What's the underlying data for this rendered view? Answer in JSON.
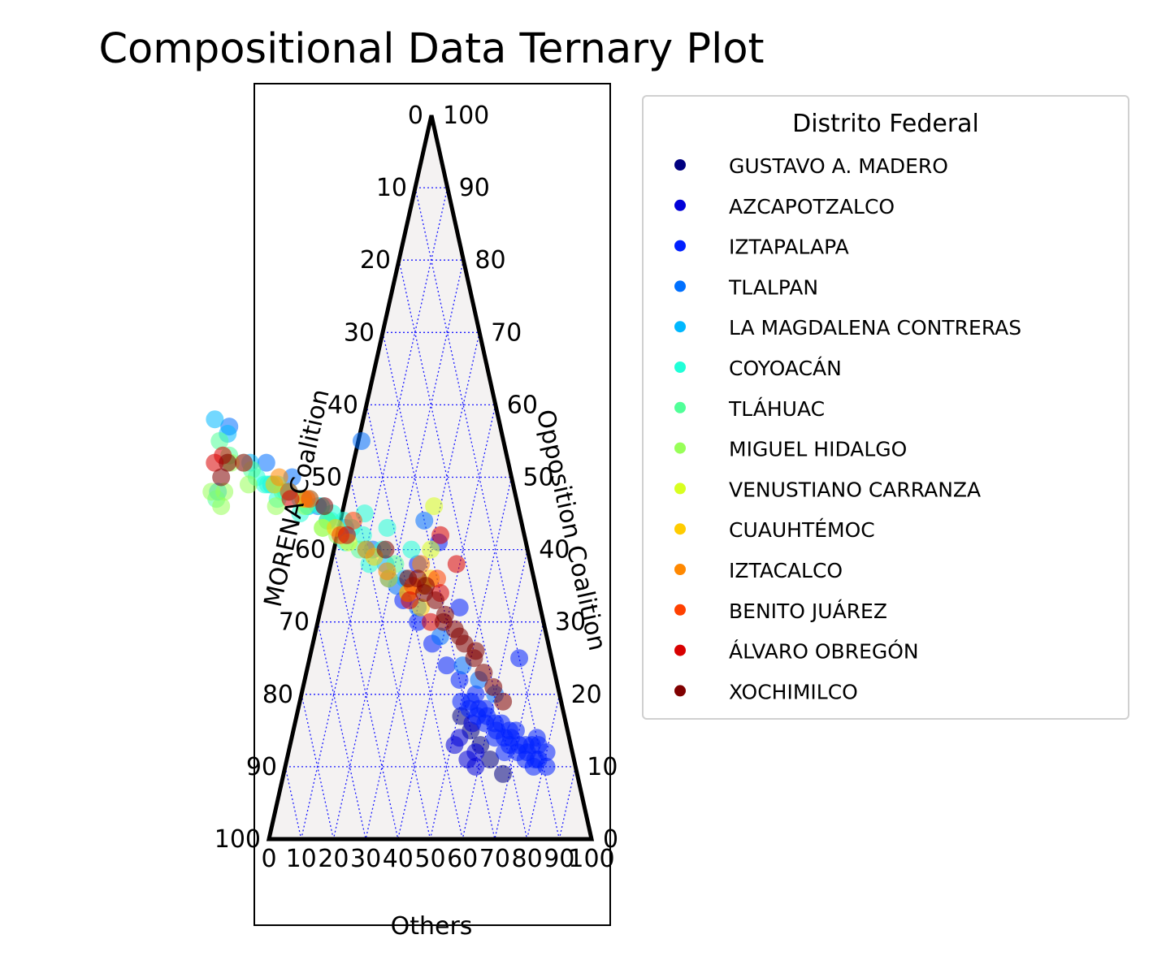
{
  "chart_data": {
    "type": "scatter",
    "subtype": "ternary",
    "title": "Compositional Data Ternary Plot",
    "axes": {
      "top": {
        "label": "",
        "range": [
          0,
          100
        ]
      },
      "left": {
        "label": "MORENA Coalition",
        "range": [
          0,
          100
        ]
      },
      "right": {
        "label": "Opposition Coalition",
        "range": [
          0,
          100
        ]
      },
      "bottom": {
        "label": "Others",
        "range": [
          0,
          100
        ]
      }
    },
    "left_ticks": [
      "0",
      "10",
      "20",
      "30",
      "40",
      "50",
      "60",
      "70",
      "80",
      "90",
      "100"
    ],
    "right_ticks": [
      "0",
      "10",
      "20",
      "30",
      "40",
      "50",
      "60",
      "70",
      "80",
      "90",
      "100"
    ],
    "bottom_ticks": [
      "0",
      "10",
      "20",
      "30",
      "40",
      "50",
      "60",
      "70",
      "80",
      "90",
      "100"
    ],
    "grid": true,
    "legend": {
      "title": "Distrito Federal",
      "placement": "outside-right"
    },
    "series": [
      {
        "name": "GUSTAVO A. MADERO",
        "color": "#000080",
        "points": [
          [
            23,
            9
          ],
          [
            26,
            11
          ],
          [
            28,
            13
          ],
          [
            30,
            15
          ],
          [
            32,
            17
          ]
        ]
      },
      {
        "name": "AZCAPOTZALCO",
        "color": "#0000d8",
        "points": [
          [
            30,
            12
          ],
          [
            31,
            10
          ],
          [
            34,
            14
          ],
          [
            36,
            13
          ],
          [
            29,
            16
          ],
          [
            33,
            11
          ]
        ]
      },
      {
        "name": "IZTAPALAPA",
        "color": "#0020ff",
        "points": [
          [
            8,
            12
          ],
          [
            10,
            14
          ],
          [
            12,
            13
          ],
          [
            14,
            12
          ],
          [
            16,
            15
          ],
          [
            18,
            14
          ],
          [
            20,
            16
          ],
          [
            22,
            15
          ],
          [
            24,
            17
          ],
          [
            26,
            18
          ],
          [
            28,
            19
          ],
          [
            9,
            10
          ],
          [
            11,
            11
          ],
          [
            13,
            10
          ],
          [
            15,
            11
          ],
          [
            17,
            12
          ],
          [
            19,
            13
          ],
          [
            21,
            12
          ],
          [
            23,
            14
          ],
          [
            25,
            16
          ],
          [
            27,
            17
          ],
          [
            29,
            18
          ],
          [
            31,
            19
          ],
          [
            10,
            13
          ],
          [
            12,
            11
          ],
          [
            14,
            13
          ],
          [
            16,
            13
          ],
          [
            18,
            15
          ],
          [
            20,
            14
          ],
          [
            22,
            16
          ],
          [
            24,
            18
          ],
          [
            26,
            20
          ],
          [
            30,
            22
          ],
          [
            33,
            24
          ],
          [
            36,
            27
          ],
          [
            39,
            30
          ],
          [
            42,
            33
          ],
          [
            10,
            25
          ],
          [
            25,
            32
          ],
          [
            35,
            38
          ],
          [
            45,
            36
          ],
          [
            27,
            41
          ]
        ]
      },
      {
        "name": "TLALPAN",
        "color": "#0070ff",
        "points": [
          [
            20,
            20
          ],
          [
            24,
            22
          ],
          [
            28,
            24
          ],
          [
            33,
            28
          ],
          [
            38,
            32
          ],
          [
            43,
            35
          ],
          [
            48,
            40
          ],
          [
            55,
            43
          ],
          [
            62,
            46
          ],
          [
            68,
            50
          ],
          [
            75,
            52
          ],
          [
            84,
            57
          ],
          [
            44,
            55
          ],
          [
            66,
            47
          ],
          [
            30,
            44
          ]
        ]
      },
      {
        "name": "LA MAGDALENA CONTRERAS",
        "color": "#00b8ff",
        "points": [
          [
            40,
            36
          ],
          [
            45,
            38
          ],
          [
            50,
            40
          ],
          [
            55,
            42
          ],
          [
            60,
            44
          ],
          [
            65,
            46
          ],
          [
            70,
            48
          ],
          [
            75,
            49
          ],
          [
            80,
            52
          ],
          [
            85,
            56
          ],
          [
            88,
            58
          ],
          [
            92,
            48
          ]
        ]
      },
      {
        "name": "COYOACÁN",
        "color": "#20ffd8",
        "points": [
          [
            45,
            40
          ],
          [
            50,
            42
          ],
          [
            55,
            44
          ],
          [
            58,
            45
          ],
          [
            61,
            46
          ],
          [
            64,
            47
          ],
          [
            67,
            47
          ],
          [
            70,
            48
          ],
          [
            73,
            49
          ],
          [
            76,
            49
          ],
          [
            79,
            50
          ],
          [
            82,
            52
          ],
          [
            50,
            38
          ],
          [
            56,
            41
          ],
          [
            62,
            43
          ],
          [
            68,
            45
          ],
          [
            74,
            47
          ],
          [
            53,
            43
          ],
          [
            59,
            44
          ],
          [
            65,
            46
          ],
          [
            71,
            48
          ],
          [
            77,
            49
          ],
          [
            36,
            40
          ],
          [
            42,
            43
          ],
          [
            48,
            45
          ]
        ]
      },
      {
        "name": "TLÁHUAC",
        "color": "#50ff98",
        "points": [
          [
            42,
            38
          ],
          [
            52,
            40
          ],
          [
            60,
            44
          ],
          [
            72,
            48
          ],
          [
            80,
            51
          ],
          [
            88,
            55
          ],
          [
            93,
            47
          ],
          [
            86,
            53
          ]
        ]
      },
      {
        "name": "MIGUEL HIDALGO",
        "color": "#98ff58",
        "points": [
          [
            75,
            46
          ],
          [
            82,
            49
          ],
          [
            86,
            52
          ],
          [
            90,
            48
          ],
          [
            92,
            46
          ],
          [
            94,
            48
          ],
          [
            58,
            42
          ],
          [
            66,
            46
          ]
        ]
      },
      {
        "name": "VENUSTIANO CARRANZA",
        "color": "#d8ff20",
        "points": [
          [
            40,
            34
          ],
          [
            45,
            36
          ],
          [
            30,
            40
          ],
          [
            26,
            46
          ],
          [
            55,
            41
          ],
          [
            62,
            43
          ]
        ]
      },
      {
        "name": "CUAUHTÉMOC",
        "color": "#ffcc00",
        "points": [
          [
            37,
            32
          ],
          [
            35,
            35
          ],
          [
            48,
            39
          ],
          [
            58,
            43
          ],
          [
            66,
            47
          ],
          [
            74,
            49
          ],
          [
            32,
            36
          ]
        ]
      },
      {
        "name": "IZTACALCO",
        "color": "#ff8800",
        "points": [
          [
            40,
            34
          ],
          [
            45,
            37
          ],
          [
            50,
            40
          ],
          [
            65,
            47
          ],
          [
            72,
            50
          ],
          [
            34,
            38
          ]
        ]
      },
      {
        "name": "BENITO JUÁREZ",
        "color": "#ff4000",
        "points": [
          [
            30,
            36
          ],
          [
            38,
            35
          ],
          [
            52,
            44
          ],
          [
            57,
            42
          ],
          [
            64,
            47
          ],
          [
            70,
            48
          ]
        ]
      },
      {
        "name": "ÁLVARO OBREGÓN",
        "color": "#d80000",
        "points": [
          [
            26,
            42
          ],
          [
            23,
            38
          ],
          [
            30,
            34
          ],
          [
            35,
            30
          ],
          [
            40,
            33
          ],
          [
            55,
            42
          ],
          [
            70,
            47
          ],
          [
            82,
            52
          ],
          [
            88,
            53
          ],
          [
            91,
            52
          ]
        ]
      },
      {
        "name": "XOCHIMILCO",
        "color": "#800000",
        "points": [
          [
            18,
            19
          ],
          [
            20,
            21
          ],
          [
            22,
            23
          ],
          [
            24,
            25
          ],
          [
            26,
            27
          ],
          [
            28,
            29
          ],
          [
            30,
            31
          ],
          [
            32,
            33
          ],
          [
            34,
            35
          ],
          [
            36,
            36
          ],
          [
            23,
            26
          ],
          [
            27,
            28
          ],
          [
            31,
            30
          ],
          [
            35,
            34
          ],
          [
            39,
            36
          ],
          [
            44,
            40
          ],
          [
            60,
            46
          ],
          [
            87,
            52
          ],
          [
            90,
            50
          ]
        ]
      }
    ]
  }
}
